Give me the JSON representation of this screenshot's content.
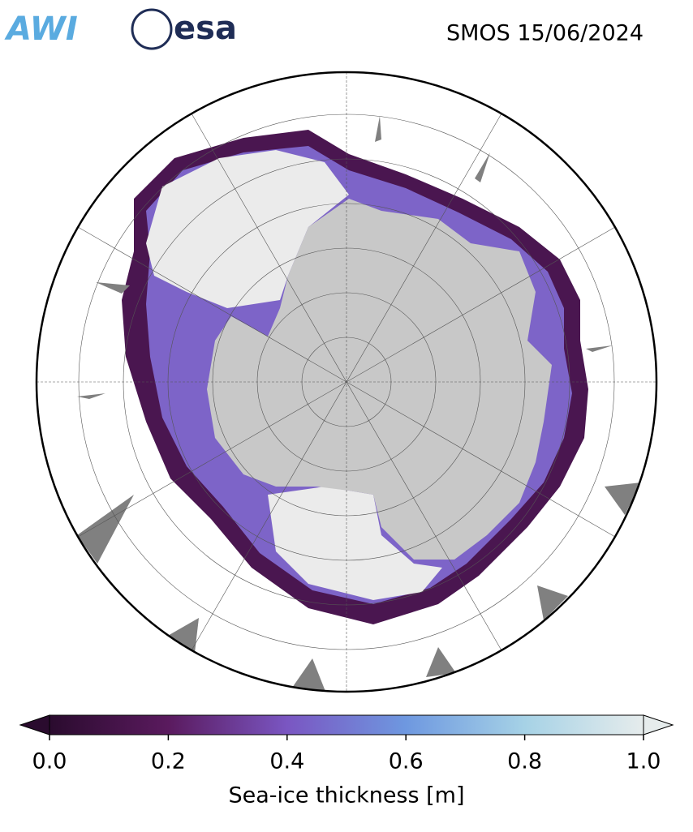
{
  "header": {
    "logo_left": "AWI",
    "logo_right": "esa",
    "title": "SMOS 15/06/2024"
  },
  "colorbar": {
    "label": "Sea-ice thickness [m]",
    "lim": [
      0,
      1
    ],
    "ticks": [
      {
        "value": 0,
        "label": "0.0"
      },
      {
        "value": 0.2,
        "label": "0.2"
      },
      {
        "value": 0.4,
        "label": "0.4"
      },
      {
        "value": 0.6,
        "label": "0.6"
      },
      {
        "value": 0.8,
        "label": "0.8"
      },
      {
        "value": 1,
        "label": "1.0"
      }
    ],
    "colors": [
      "#2a0b2e",
      "#5a1a5e",
      "#7a56c2",
      "#6e98e0",
      "#a6d2e6",
      "#e6ecec"
    ]
  }
}
